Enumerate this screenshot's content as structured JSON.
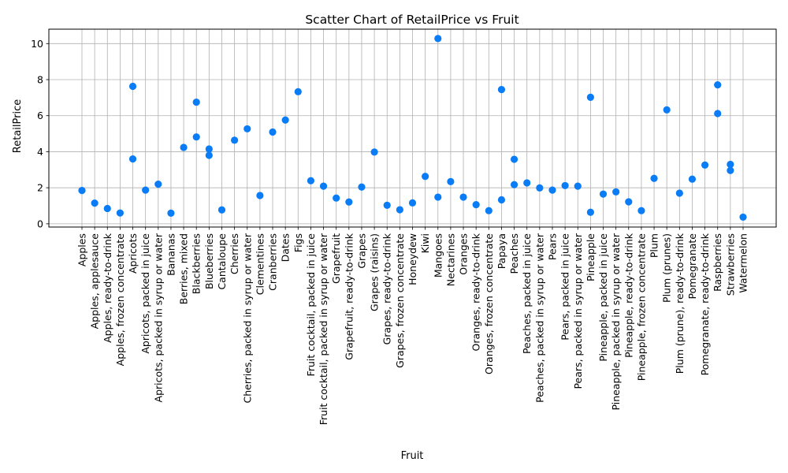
{
  "chart_data": {
    "type": "scatter",
    "title": "Scatter Chart of RetailPrice vs Fruit",
    "xlabel": "Fruit",
    "ylabel": "RetailPrice",
    "ylim": [
      -0.18,
      10.8
    ],
    "yticks": [
      0,
      2,
      4,
      6,
      8,
      10
    ],
    "grid": true,
    "marker_color": "#0a7cf5",
    "categories": [
      "Apples",
      "Apples, applesauce",
      "Apples, ready-to-drink",
      "Apples, frozen concentrate",
      "Apricots",
      "Apricots, packed in juice",
      "Apricots, packed in syrup or water",
      "Bananas",
      "Berries, mixed",
      "Blackberries",
      "Blueberries",
      "Cantaloupe",
      "Cherries",
      "Cherries, packed in syrup or water",
      "Clementines",
      "Cranberries",
      "Dates",
      "Figs",
      "Fruit cocktail, packed in juice",
      "Fruit cocktail, packed in syrup or water",
      "Grapefruit",
      "Grapefruit, ready-to-drink",
      "Grapes",
      "Grapes (raisins)",
      "Grapes, ready-to-drink",
      "Grapes, frozen concentrate",
      "Honeydew",
      "Kiwi",
      "Mangoes",
      "Nectarines",
      "Oranges",
      "Oranges, ready-to-drink",
      "Oranges, frozen concentrate",
      "Papaya",
      "Peaches",
      "Peaches, packed in juice",
      "Peaches, packed in syrup or water",
      "Pears",
      "Pears, packed in juice",
      "Pears, packed in syrup or water",
      "Pineapple",
      "Pineapple, packed in juice",
      "Pineapple, packed in syrup or water",
      "Pineapple, ready-to-drink",
      "Pineapple, frozen concentrate",
      "Plum",
      "Plum (prunes)",
      "Plum (prune), ready-to-drink",
      "Pomegranate",
      "Pomegranate, ready-to-drink",
      "Raspberries",
      "Strawberries",
      "Watermelon"
    ],
    "points": [
      {
        "x": "Apples",
        "y": 1.85
      },
      {
        "x": "Apples, applesauce",
        "y": 1.15
      },
      {
        "x": "Apples, ready-to-drink",
        "y": 0.85
      },
      {
        "x": "Apples, frozen concentrate",
        "y": 0.6
      },
      {
        "x": "Apricots",
        "y": 3.6
      },
      {
        "x": "Apricots",
        "y": 7.63
      },
      {
        "x": "Apricots, packed in juice",
        "y": 1.87
      },
      {
        "x": "Apricots, packed in syrup or water",
        "y": 2.2
      },
      {
        "x": "Bananas",
        "y": 0.59
      },
      {
        "x": "Berries, mixed",
        "y": 4.24
      },
      {
        "x": "Blackberries",
        "y": 4.82
      },
      {
        "x": "Blackberries",
        "y": 6.75
      },
      {
        "x": "Blueberries",
        "y": 4.15
      },
      {
        "x": "Blueberries",
        "y": 3.8
      },
      {
        "x": "Cantaloupe",
        "y": 0.77
      },
      {
        "x": "Cherries",
        "y": 4.64
      },
      {
        "x": "Cherries, packed in syrup or water",
        "y": 5.27
      },
      {
        "x": "Clementines",
        "y": 1.57
      },
      {
        "x": "Cranberries",
        "y": 5.09
      },
      {
        "x": "Dates",
        "y": 5.76
      },
      {
        "x": "Figs",
        "y": 7.33
      },
      {
        "x": "Fruit cocktail, packed in juice",
        "y": 2.39
      },
      {
        "x": "Fruit cocktail, packed in syrup or water",
        "y": 2.09
      },
      {
        "x": "Grapefruit",
        "y": 1.43
      },
      {
        "x": "Grapefruit, ready-to-drink",
        "y": 1.21
      },
      {
        "x": "Grapes",
        "y": 2.04
      },
      {
        "x": "Grapes (raisins)",
        "y": 3.98
      },
      {
        "x": "Grapes, ready-to-drink",
        "y": 1.03
      },
      {
        "x": "Grapes, frozen concentrate",
        "y": 0.78
      },
      {
        "x": "Honeydew",
        "y": 1.16
      },
      {
        "x": "Kiwi",
        "y": 2.63
      },
      {
        "x": "Mangoes",
        "y": 1.48
      },
      {
        "x": "Mangoes",
        "y": 10.28
      },
      {
        "x": "Nectarines",
        "y": 2.34
      },
      {
        "x": "Oranges",
        "y": 1.48
      },
      {
        "x": "Oranges, ready-to-drink",
        "y": 1.06
      },
      {
        "x": "Oranges, frozen concentrate",
        "y": 0.73
      },
      {
        "x": "Papaya",
        "y": 1.33
      },
      {
        "x": "Papaya",
        "y": 7.45
      },
      {
        "x": "Peaches",
        "y": 3.58
      },
      {
        "x": "Peaches",
        "y": 2.17
      },
      {
        "x": "Peaches, packed in juice",
        "y": 2.27
      },
      {
        "x": "Peaches, packed in syrup or water",
        "y": 1.99
      },
      {
        "x": "Pears",
        "y": 1.87
      },
      {
        "x": "Pears, packed in juice",
        "y": 2.12
      },
      {
        "x": "Pears, packed in syrup or water",
        "y": 2.09
      },
      {
        "x": "Pineapple",
        "y": 0.64
      },
      {
        "x": "Pineapple",
        "y": 7.02
      },
      {
        "x": "Pineapple, packed in juice",
        "y": 1.65
      },
      {
        "x": "Pineapple, packed in syrup or water",
        "y": 1.77
      },
      {
        "x": "Pineapple, ready-to-drink",
        "y": 1.22
      },
      {
        "x": "Pineapple, frozen concentrate",
        "y": 0.73
      },
      {
        "x": "Plum",
        "y": 2.52
      },
      {
        "x": "Plum (prunes)",
        "y": 6.32
      },
      {
        "x": "Plum (prune), ready-to-drink",
        "y": 1.7
      },
      {
        "x": "Pomegranate",
        "y": 2.48
      },
      {
        "x": "Pomegranate, ready-to-drink",
        "y": 3.26
      },
      {
        "x": "Raspberries",
        "y": 7.71
      },
      {
        "x": "Raspberries",
        "y": 6.12
      },
      {
        "x": "Strawberries",
        "y": 3.3
      },
      {
        "x": "Strawberries",
        "y": 2.96
      },
      {
        "x": "Watermelon",
        "y": 0.37
      }
    ]
  }
}
